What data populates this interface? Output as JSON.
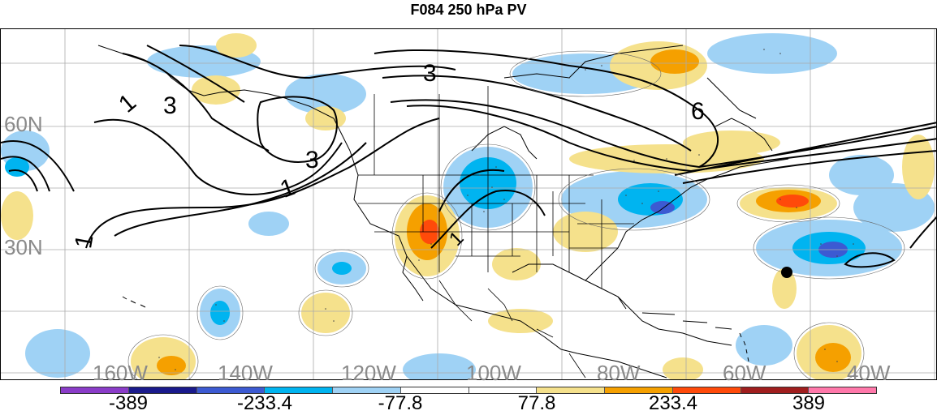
{
  "title": "F084 250 hPa PV",
  "lon_labels": [
    "160W",
    "140W",
    "120W",
    "100W",
    "80W",
    "60W",
    "40W"
  ],
  "lat_labels": [
    "60N",
    "30N"
  ],
  "contour_labels": [
    "1",
    "3",
    "3",
    "1",
    "1",
    "3",
    "6",
    "1"
  ],
  "colorbar": {
    "colors": [
      "#8a3cc8",
      "#1a1a8c",
      "#3c5ad2",
      "#00b4f0",
      "#9fd2f5",
      "#ffffff",
      "#ffffff",
      "#f5e18c",
      "#f5a000",
      "#ff4a0a",
      "#a01e1e",
      "#ff78aa"
    ],
    "tick_labels": [
      "-389",
      "-233.4",
      "-77.8",
      "77.8",
      "233.4",
      "389"
    ]
  }
}
